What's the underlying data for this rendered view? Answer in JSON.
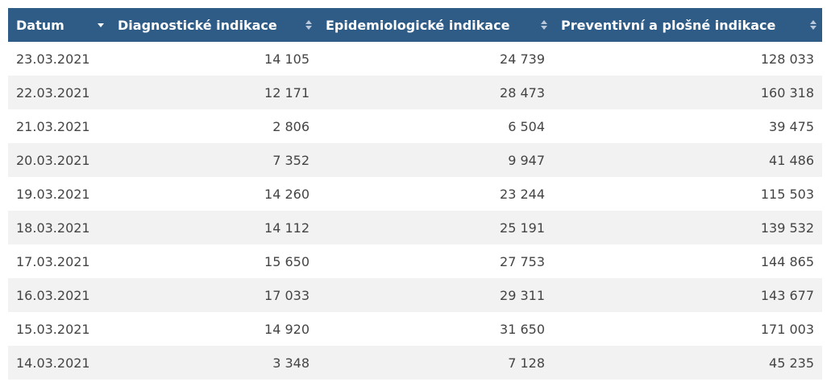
{
  "table": {
    "headers": [
      {
        "label": "Datum",
        "sort": "desc"
      },
      {
        "label": "Diagnostické indikace",
        "sort": "both"
      },
      {
        "label": "Epidemiologické indikace",
        "sort": "both"
      },
      {
        "label": "Preventivní a plošné indikace",
        "sort": "both"
      }
    ],
    "rows": [
      [
        "23.03.2021",
        "14 105",
        "24 739",
        "128 033"
      ],
      [
        "22.03.2021",
        "12 171",
        "28 473",
        "160 318"
      ],
      [
        "21.03.2021",
        "2 806",
        "6 504",
        "39 475"
      ],
      [
        "20.03.2021",
        "7 352",
        "9 947",
        "41 486"
      ],
      [
        "19.03.2021",
        "14 260",
        "23 244",
        "115 503"
      ],
      [
        "18.03.2021",
        "14 112",
        "25 191",
        "139 532"
      ],
      [
        "17.03.2021",
        "15 650",
        "27 753",
        "144 865"
      ],
      [
        "16.03.2021",
        "17 033",
        "29 311",
        "143 677"
      ],
      [
        "15.03.2021",
        "14 920",
        "31 650",
        "171 003"
      ],
      [
        "14.03.2021",
        "3 348",
        "7 128",
        "45 235"
      ]
    ]
  },
  "colors": {
    "header_bg": "#2f5c87",
    "header_text": "#ffffff",
    "row_alt": "#f2f2f2",
    "cell_text": "#444444"
  },
  "icons": {
    "desc": "sort-desc-icon",
    "both": "sort-both-icon"
  }
}
